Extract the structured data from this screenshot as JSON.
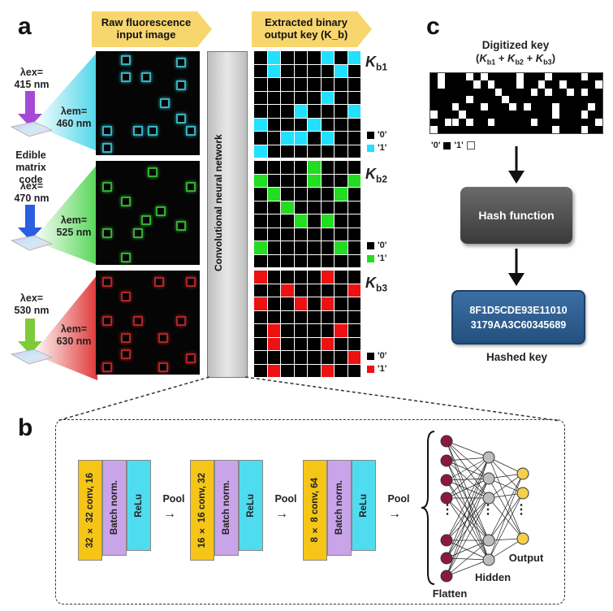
{
  "panels": {
    "a": "a",
    "b": "b",
    "c": "c"
  },
  "panel_a": {
    "header_left": "Raw fluorescence input image",
    "header_right": "Extracted binary output key (K_b)",
    "cnn_label": "Convolutional neural network",
    "edible_label": "Edible matrix code",
    "rows": [
      {
        "ex": "λex= 415 nm",
        "em": "λem= 460 nm",
        "color": "#3fd0e0",
        "key_label": "K_b1",
        "key_color": "#22e0ff",
        "blocks": [
          [
            0.24,
            0.04
          ],
          [
            0.77,
            0.06
          ],
          [
            0.24,
            0.2
          ],
          [
            0.44,
            0.2
          ],
          [
            0.77,
            0.28
          ],
          [
            0.62,
            0.45
          ],
          [
            0.77,
            0.6
          ],
          [
            0.06,
            0.72
          ],
          [
            0.36,
            0.72
          ],
          [
            0.5,
            0.72
          ],
          [
            0.87,
            0.72
          ],
          [
            0.06,
            0.88
          ]
        ]
      },
      {
        "ex": "λex= 470 nm",
        "em": "λem= 525 nm",
        "color": "#3ccc3c",
        "key_label": "K_b2",
        "key_color": "#22dd22",
        "blocks": [
          [
            0.5,
            0.06
          ],
          [
            0.06,
            0.2
          ],
          [
            0.87,
            0.2
          ],
          [
            0.24,
            0.34
          ],
          [
            0.58,
            0.44
          ],
          [
            0.44,
            0.52
          ],
          [
            0.06,
            0.65
          ],
          [
            0.36,
            0.65
          ],
          [
            0.77,
            0.58
          ],
          [
            0.24,
            0.88
          ]
        ]
      },
      {
        "ex": "λex= 530 nm",
        "em": "λem= 630 nm",
        "color": "#d02a2a",
        "key_label": "K_b3",
        "key_color": "#ee1111",
        "blocks": [
          [
            0.06,
            0.06
          ],
          [
            0.56,
            0.06
          ],
          [
            0.24,
            0.2
          ],
          [
            0.87,
            0.06
          ],
          [
            0.06,
            0.44
          ],
          [
            0.36,
            0.44
          ],
          [
            0.77,
            0.44
          ],
          [
            0.24,
            0.6
          ],
          [
            0.6,
            0.6
          ],
          [
            0.24,
            0.76
          ],
          [
            0.06,
            0.88
          ],
          [
            0.6,
            0.88
          ],
          [
            0.87,
            0.8
          ]
        ]
      }
    ],
    "legend_zero": "'0'",
    "legend_one": "'1'",
    "keys": [
      [
        [
          0,
          1,
          0,
          0,
          0,
          1,
          0,
          1
        ],
        [
          0,
          1,
          0,
          0,
          0,
          0,
          1,
          0
        ],
        [
          0,
          0,
          0,
          0,
          0,
          0,
          0,
          0
        ],
        [
          0,
          0,
          0,
          0,
          0,
          1,
          0,
          0
        ],
        [
          0,
          0,
          0,
          1,
          0,
          0,
          0,
          1
        ],
        [
          1,
          0,
          0,
          0,
          1,
          0,
          0,
          0
        ],
        [
          0,
          0,
          1,
          1,
          0,
          1,
          0,
          0
        ],
        [
          1,
          0,
          0,
          0,
          0,
          0,
          0,
          0
        ]
      ],
      [
        [
          0,
          0,
          0,
          0,
          1,
          0,
          0,
          0
        ],
        [
          1,
          0,
          0,
          0,
          1,
          0,
          0,
          1
        ],
        [
          0,
          1,
          0,
          0,
          0,
          0,
          1,
          0
        ],
        [
          0,
          0,
          1,
          0,
          0,
          0,
          0,
          0
        ],
        [
          0,
          0,
          0,
          1,
          0,
          1,
          0,
          0
        ],
        [
          0,
          0,
          0,
          0,
          0,
          0,
          0,
          0
        ],
        [
          1,
          0,
          0,
          0,
          0,
          0,
          1,
          0
        ],
        [
          0,
          0,
          0,
          0,
          0,
          0,
          0,
          0
        ]
      ],
      [
        [
          1,
          0,
          0,
          0,
          0,
          1,
          0,
          0
        ],
        [
          0,
          0,
          1,
          0,
          0,
          0,
          0,
          1
        ],
        [
          1,
          0,
          0,
          1,
          0,
          1,
          0,
          0
        ],
        [
          0,
          0,
          0,
          0,
          0,
          0,
          0,
          0
        ],
        [
          0,
          1,
          0,
          0,
          0,
          0,
          1,
          0
        ],
        [
          0,
          1,
          0,
          0,
          0,
          1,
          0,
          0
        ],
        [
          0,
          0,
          0,
          0,
          0,
          0,
          0,
          1
        ],
        [
          0,
          1,
          0,
          0,
          0,
          1,
          0,
          0
        ]
      ]
    ]
  },
  "panel_b": {
    "blocks": [
      {
        "conv": "32 × 32 conv, 16",
        "bn": "Batch norm.",
        "relu": "ReLu"
      },
      {
        "conv": "16 × 16 conv, 32",
        "bn": "Batch norm.",
        "relu": "ReLu"
      },
      {
        "conv": "8 × 8 conv, 64",
        "bn": "Batch norm.",
        "relu": "ReLu"
      }
    ],
    "pool": "Pool",
    "flatten": "Flatten",
    "hidden": "Hidden",
    "output": "Output",
    "dots": "⋮",
    "colors": {
      "conv": "#f5c518",
      "bn": "#c9a4e8",
      "relu": "#4fdcf0",
      "flatten_node": "#8b1a3a",
      "hidden_node": "#bdbdbd",
      "output_node": "#f5d04a"
    }
  },
  "panel_c": {
    "title": "Digitized key",
    "subtitle": "(K_b1 + K_b2 + K_b3)",
    "legend_zero": "'0'",
    "legend_one": "'1'",
    "hash_label": "Hash function",
    "hash_line1": "8F1D5CDE93E11010",
    "hash_line2": "3179AA3C60345689",
    "hashed_key": "Hashed key",
    "colors": {
      "hash_box": "#4a4a4a",
      "hashed_box": "#2e5d8e"
    }
  }
}
